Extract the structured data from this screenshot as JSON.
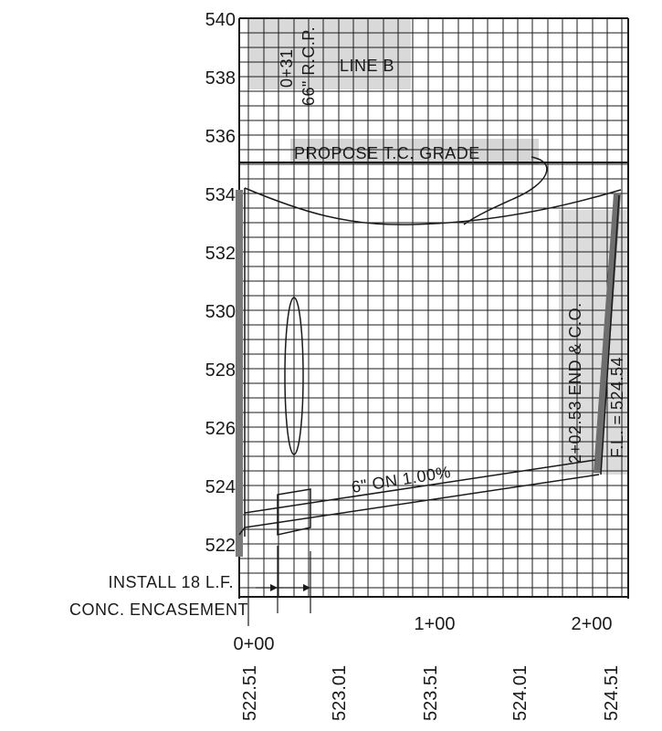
{
  "profile": {
    "y_axis": {
      "ticks": [
        "540",
        "538",
        "536",
        "534",
        "532",
        "530",
        "528",
        "526",
        "524",
        "522"
      ]
    },
    "stations": [
      "0+00",
      "1+00",
      "2+00"
    ],
    "bottom_values": [
      "522.51",
      "523.01",
      "523.51",
      "524.01",
      "524.51"
    ],
    "labels": {
      "line_name": "LINE B",
      "station_crossing": "0+31",
      "rcp": "66\" R.C.P.",
      "grade": "PROPOSE T.C. GRADE",
      "pipe": "6\" ON 1.00%",
      "end_cleanout": "2+02.53 END & C.O.",
      "flowline": "F.L. = 524.54",
      "encasement_line1": "INSTALL 18 L.F.",
      "encasement_line2": "CONC. ENCASEMENT"
    },
    "colors": {
      "ink": "#1a1a1a",
      "shading": "#d6d6d6",
      "riser": "#7a7a7a"
    }
  }
}
